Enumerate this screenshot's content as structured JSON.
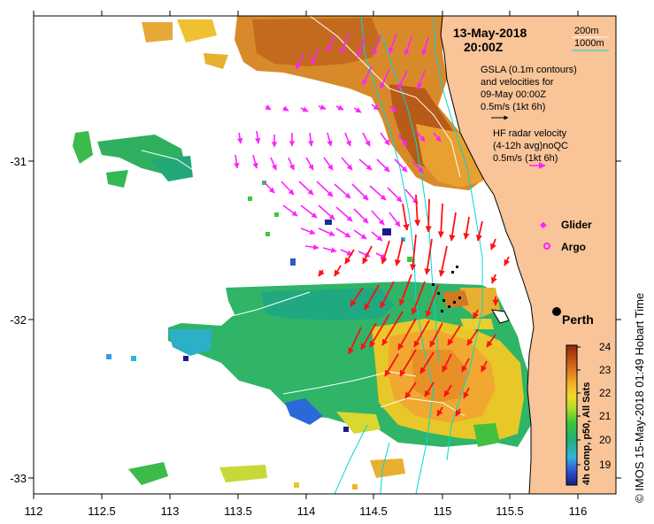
{
  "header": {
    "date": "13-May-2018",
    "time": "20:00Z"
  },
  "isobath_legend": {
    "depth_1": "200m",
    "depth_2": "1000m"
  },
  "gsla_legend": {
    "line_1": "GSLA (0.1m contours)",
    "line_2": "and velocities for",
    "line_3": "09-May 00:00Z",
    "scale": "0.5m/s (1kt 6h)"
  },
  "hf_legend": {
    "line_1": "HF radar velocity",
    "line_2": "(4-12h avg)noQC",
    "scale": "0.5m/s (1kt 6h)"
  },
  "markers": {
    "glider": "Glider",
    "argo": "Argo",
    "city": "Perth"
  },
  "axes": {
    "x_ticks": [
      "112",
      "112.5",
      "113",
      "113.5",
      "114",
      "114.5",
      "115",
      "115.5",
      "116"
    ],
    "y_ticks": [
      "-31",
      "-32",
      "-33"
    ]
  },
  "colorbar": {
    "ticks": [
      "24",
      "23",
      "22",
      "21",
      "20",
      "19"
    ],
    "label": "4h comp, p50, All Sats",
    "colors": [
      "#1a1a8c",
      "#2f55d0",
      "#2fb4e0",
      "#22b070",
      "#3cc83c",
      "#b4dc28",
      "#f0dc28",
      "#f0b428",
      "#e07820",
      "#b44a14",
      "#8c2a0a"
    ]
  },
  "credit": "© IMOS 15-May-2018 01:49 Hobart Time",
  "colors": {
    "land": "#f8c498",
    "hf_arrow": "#ff22ff",
    "gsla_arrow": "#ff1111",
    "isobath": "#00d8d8"
  }
}
